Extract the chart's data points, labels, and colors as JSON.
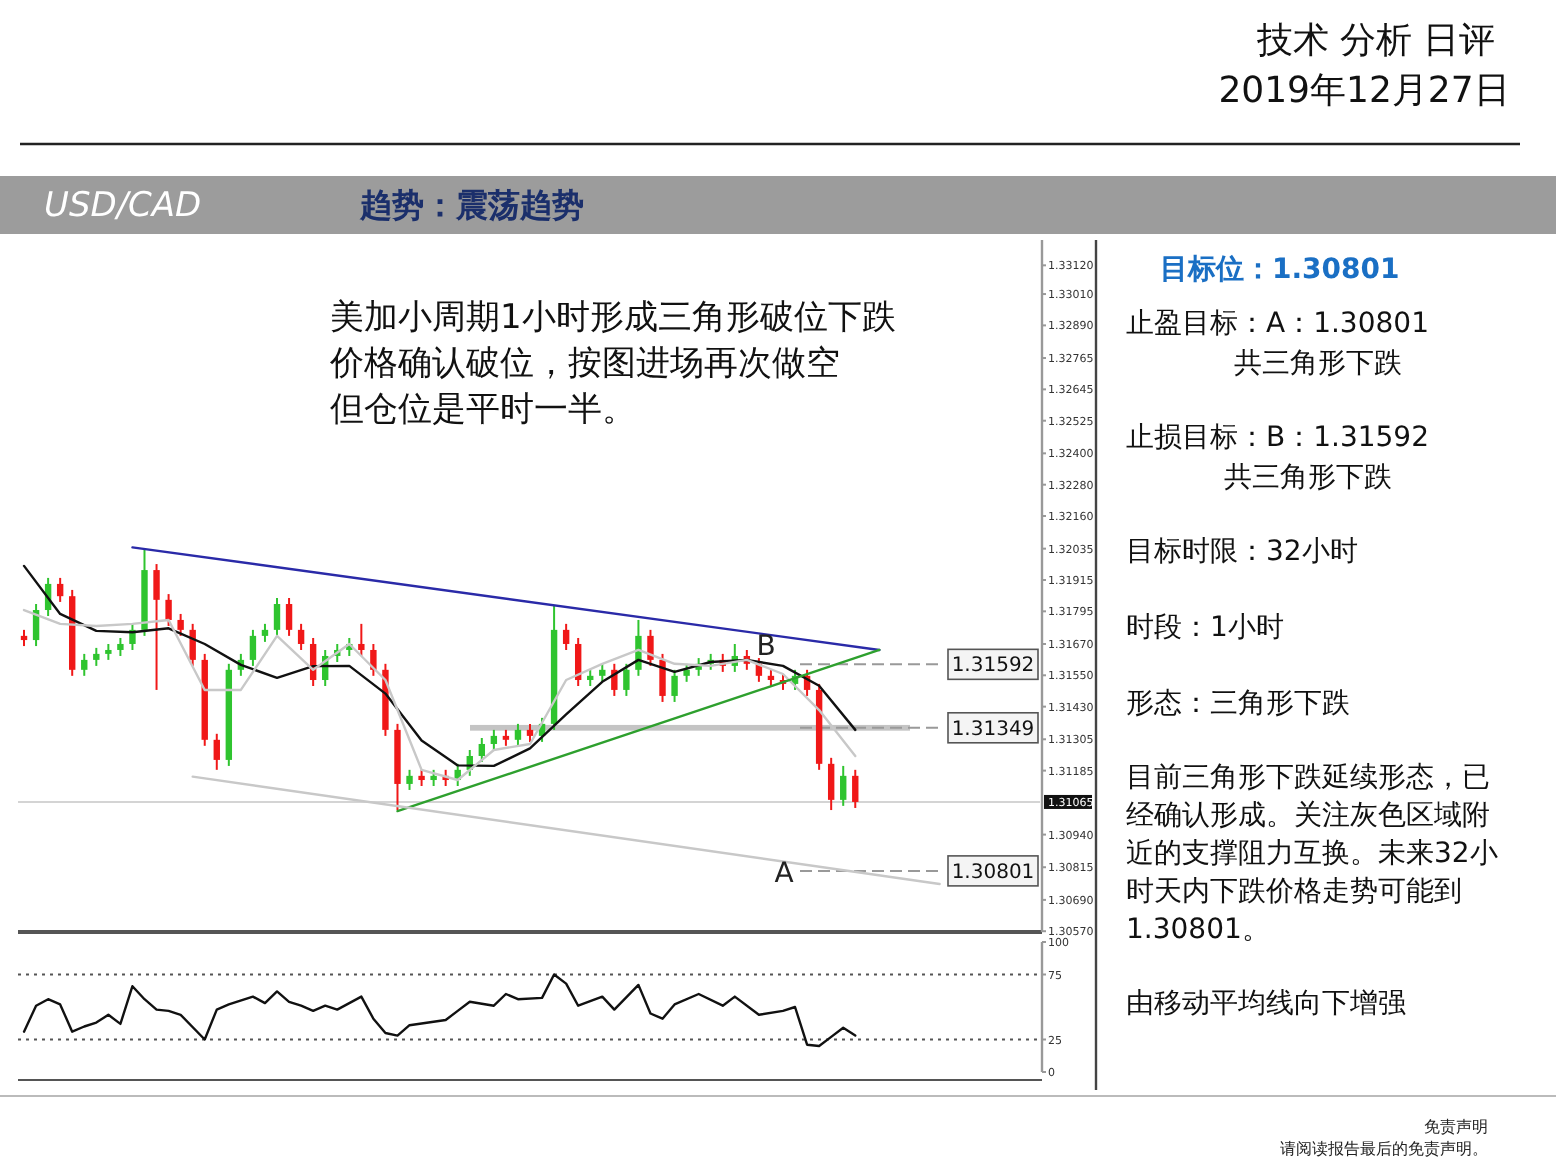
{
  "chart_data": [
    {
      "type": "other",
      "title": "技术 分析 日评",
      "subtitle": "2019年12月27日",
      "annotations": [
        "免责声明",
        "请阅读报告最后的免责声明。"
      ]
    },
    {
      "type": "candlestick",
      "title": "USD/CAD",
      "subtitle": "趋势：震荡趋势",
      "categories": [
        null,
        null,
        null,
        null,
        null,
        null,
        null,
        null,
        null,
        null,
        null,
        null,
        null,
        null,
        null,
        null,
        null,
        null,
        null,
        null,
        null,
        null,
        null,
        null,
        null,
        null,
        null,
        null,
        null,
        null,
        null,
        null,
        null,
        null,
        null,
        null,
        null,
        null,
        null,
        null,
        null,
        null,
        null,
        null,
        null,
        null,
        null,
        null,
        null,
        null,
        null,
        null,
        null,
        null,
        null,
        null,
        null,
        null,
        null,
        null,
        null,
        null,
        null,
        null,
        null,
        null,
        null,
        null,
        null,
        null,
        null,
        null,
        null,
        null,
        null,
        null,
        null,
        null,
        null,
        null,
        null,
        null,
        null,
        null,
        null
      ],
      "ohlc": [
        [
          1.31701,
          1.31724,
          1.31662,
          1.31685
        ],
        [
          1.31685,
          1.31823,
          1.31662,
          1.318
        ],
        [
          1.318,
          1.31923,
          1.31777,
          1.319
        ],
        [
          1.319,
          1.31923,
          1.31831,
          1.31853
        ],
        [
          1.31853,
          1.31877,
          1.31548,
          1.31571
        ],
        [
          1.31571,
          1.31632,
          1.31548,
          1.31609
        ],
        [
          1.31609,
          1.31655,
          1.31586,
          1.31632
        ],
        [
          1.31632,
          1.3167,
          1.31609,
          1.31647
        ],
        [
          1.31647,
          1.31693,
          1.31624,
          1.3167
        ],
        [
          1.3167,
          1.31747,
          1.31647,
          1.31724
        ],
        [
          1.31724,
          1.3203,
          1.31701,
          1.31953
        ],
        [
          1.31953,
          1.31976,
          1.31494,
          1.31839
        ],
        [
          1.31839,
          1.31861,
          1.31739,
          1.31762
        ],
        [
          1.31762,
          1.31785,
          1.31701,
          1.31724
        ],
        [
          1.31724,
          1.31747,
          1.31586,
          1.31609
        ],
        [
          1.31609,
          1.31632,
          1.3128,
          1.31303
        ],
        [
          1.31303,
          1.31326,
          1.31188,
          1.31226
        ],
        [
          1.31226,
          1.31594,
          1.31203,
          1.31571
        ],
        [
          1.31571,
          1.31632,
          1.31548,
          1.31609
        ],
        [
          1.31609,
          1.31724,
          1.31586,
          1.31701
        ],
        [
          1.31701,
          1.31747,
          1.31678,
          1.31724
        ],
        [
          1.31724,
          1.31846,
          1.31701,
          1.31823
        ],
        [
          1.31823,
          1.31846,
          1.31701,
          1.31724
        ],
        [
          1.31724,
          1.31747,
          1.31647,
          1.3167
        ],
        [
          1.3167,
          1.31693,
          1.31509,
          1.31532
        ],
        [
          1.31532,
          1.31647,
          1.31509,
          1.31624
        ],
        [
          1.31624,
          1.3167,
          1.31601,
          1.31647
        ],
        [
          1.31647,
          1.31693,
          1.31624,
          1.3167
        ],
        [
          1.3167,
          1.31747,
          1.31624,
          1.31647
        ],
        [
          1.31647,
          1.3167,
          1.31548,
          1.31571
        ],
        [
          1.31571,
          1.31594,
          1.31318,
          1.31341
        ],
        [
          1.31341,
          1.31364,
          1.31034,
          1.31134
        ],
        [
          1.31134,
          1.31188,
          1.31111,
          1.31165
        ],
        [
          1.31165,
          1.31188,
          1.31126,
          1.31149
        ],
        [
          1.31149,
          1.31188,
          1.31126,
          1.31165
        ],
        [
          1.31165,
          1.31188,
          1.31126,
          1.31149
        ],
        [
          1.31149,
          1.31211,
          1.31126,
          1.31188
        ],
        [
          1.31188,
          1.31264,
          1.31165,
          1.31241
        ],
        [
          1.31241,
          1.3131,
          1.31218,
          1.31287
        ],
        [
          1.31287,
          1.31341,
          1.31264,
          1.31318
        ],
        [
          1.31318,
          1.31341,
          1.3128,
          1.31303
        ],
        [
          1.31303,
          1.31364,
          1.3128,
          1.31341
        ],
        [
          1.31341,
          1.31364,
          1.31295,
          1.31318
        ],
        [
          1.31318,
          1.31387,
          1.31295,
          1.31364
        ],
        [
          1.31364,
          1.31816,
          1.31341,
          1.31724
        ],
        [
          1.31724,
          1.31747,
          1.31647,
          1.3167
        ],
        [
          1.3167,
          1.31693,
          1.31509,
          1.31532
        ],
        [
          1.31532,
          1.31571,
          1.31509,
          1.31548
        ],
        [
          1.31548,
          1.31594,
          1.31525,
          1.31571
        ],
        [
          1.31571,
          1.31594,
          1.31471,
          1.31494
        ],
        [
          1.31494,
          1.31594,
          1.31471,
          1.31571
        ],
        [
          1.31571,
          1.31762,
          1.31548,
          1.31701
        ],
        [
          1.31701,
          1.31724,
          1.31586,
          1.31609
        ],
        [
          1.31609,
          1.31632,
          1.31448,
          1.31471
        ],
        [
          1.31471,
          1.31571,
          1.31448,
          1.31548
        ],
        [
          1.31548,
          1.31594,
          1.31525,
          1.31571
        ],
        [
          1.31571,
          1.31616,
          1.31548,
          1.31594
        ],
        [
          1.31594,
          1.31632,
          1.31571,
          1.31609
        ],
        [
          1.31609,
          1.31632,
          1.31563,
          1.31586
        ],
        [
          1.31586,
          1.3167,
          1.31563,
          1.31624
        ],
        [
          1.31624,
          1.31647,
          1.31571,
          1.31594
        ],
        [
          1.31594,
          1.31616,
          1.31525,
          1.31548
        ],
        [
          1.31548,
          1.31571,
          1.31509,
          1.31532
        ],
        [
          1.31532,
          1.31555,
          1.31494,
          1.31517
        ],
        [
          1.31517,
          1.31571,
          1.31494,
          1.31548
        ],
        [
          1.31548,
          1.31571,
          1.31471,
          1.31494
        ],
        [
          1.31494,
          1.31517,
          1.31188,
          1.31211
        ],
        [
          1.31211,
          1.31234,
          1.31034,
          1.31073
        ],
        [
          1.31073,
          1.31203,
          1.3105,
          1.31165
        ],
        [
          1.31165,
          1.31188,
          1.31042,
          1.31065
        ],
        null,
        null,
        null,
        null,
        null,
        null,
        null,
        null,
        null,
        null,
        null,
        null,
        null,
        null,
        null
      ],
      "series": [
        {
          "type": "line",
          "color": "#111111",
          "values": [
            1.31969,
            null,
            null,
            1.31785,
            null,
            null,
            1.3172,
            null,
            null,
            1.31715,
            null,
            null,
            1.3173,
            null,
            null,
            1.3167,
            null,
            null,
            1.3159,
            null,
            null,
            1.3154,
            null,
            null,
            1.31585,
            null,
            null,
            1.31586,
            null,
            null,
            1.3148,
            null,
            null,
            1.313,
            null,
            null,
            1.31205,
            null,
            null,
            1.31203,
            null,
            null,
            1.3127,
            null,
            null,
            1.314,
            null,
            null,
            1.31525,
            null,
            null,
            1.31609,
            null,
            null,
            1.31563,
            null,
            null,
            1.31601,
            null,
            null,
            1.31609,
            null,
            null,
            1.31586,
            null,
            null,
            1.3151,
            null,
            null,
            1.31341,
            null,
            null,
            null,
            null,
            null,
            null,
            null,
            null,
            null,
            null,
            null,
            null,
            null,
            null,
            null
          ]
        },
        {
          "type": "line",
          "color": "#c8c8c8",
          "values": [
            1.318,
            null,
            null,
            1.31747,
            null,
            null,
            1.31739,
            null,
            null,
            1.31747,
            null,
            null,
            1.31762,
            null,
            null,
            1.31494,
            null,
            null,
            1.31494,
            null,
            null,
            1.31701,
            null,
            null,
            1.31571,
            null,
            null,
            1.3167,
            null,
            null,
            1.31532,
            null,
            null,
            1.31188,
            null,
            null,
            1.31149,
            null,
            null,
            1.31264,
            null,
            null,
            1.31287,
            null,
            null,
            1.31532,
            null,
            null,
            1.31594,
            null,
            null,
            1.31647,
            null,
            null,
            1.31594,
            null,
            null,
            1.31586,
            null,
            null,
            1.31609,
            null,
            null,
            1.31555,
            null,
            null,
            1.31417,
            null,
            null,
            1.31241,
            null,
            null,
            null,
            null,
            null,
            null,
            null,
            null,
            null,
            null,
            null,
            null,
            null,
            null,
            null
          ]
        },
        {
          "type": "line",
          "color": "#2a2aa8",
          "values": [
            null,
            null,
            null,
            null,
            null,
            null,
            null,
            null,
            null,
            1.3204,
            null,
            null,
            null,
            null,
            null,
            null,
            null,
            null,
            null,
            null,
            null,
            null,
            null,
            null,
            null,
            null,
            null,
            null,
            null,
            null,
            null,
            null,
            null,
            null,
            null,
            null,
            null,
            null,
            null,
            null,
            null,
            null,
            null,
            null,
            null,
            null,
            null,
            null,
            null,
            null,
            null,
            null,
            null,
            null,
            null,
            null,
            null,
            null,
            null,
            null,
            null,
            null,
            null,
            null,
            null,
            null,
            null,
            null,
            null,
            null,
            null,
            1.31647,
            null,
            null,
            null,
            null,
            null,
            null,
            null,
            null,
            null,
            null,
            null,
            null,
            null
          ]
        },
        {
          "type": "line",
          "color": "#2ea02e",
          "values": [
            null,
            null,
            null,
            null,
            null,
            null,
            null,
            null,
            null,
            null,
            null,
            null,
            null,
            null,
            null,
            null,
            null,
            null,
            null,
            null,
            null,
            null,
            null,
            null,
            null,
            null,
            null,
            null,
            null,
            null,
            null,
            1.3103,
            null,
            null,
            null,
            null,
            null,
            null,
            null,
            null,
            null,
            null,
            null,
            null,
            null,
            null,
            null,
            null,
            null,
            null,
            null,
            null,
            null,
            null,
            null,
            null,
            null,
            null,
            null,
            null,
            null,
            null,
            null,
            null,
            null,
            null,
            null,
            null,
            null,
            null,
            null,
            1.31647,
            null,
            null,
            null,
            null,
            null,
            null,
            null,
            null,
            null,
            null,
            null,
            null,
            null
          ]
        },
        {
          "type": "line",
          "color": "#c8c8c8",
          "values": [
            null,
            null,
            null,
            null,
            null,
            null,
            null,
            null,
            null,
            null,
            null,
            null,
            null,
            null,
            1.31162,
            null,
            null,
            null,
            null,
            null,
            null,
            null,
            null,
            null,
            null,
            null,
            null,
            null,
            null,
            null,
            null,
            null,
            null,
            null,
            null,
            null,
            null,
            null,
            null,
            null,
            null,
            null,
            null,
            null,
            null,
            null,
            null,
            null,
            null,
            null,
            null,
            null,
            null,
            null,
            null,
            null,
            null,
            null,
            null,
            null,
            null,
            null,
            null,
            null,
            null,
            null,
            null,
            null,
            null,
            null,
            null,
            null,
            null,
            null,
            null,
            null,
            1.30751,
            null,
            null,
            null,
            null,
            null,
            null,
            null,
            null
          ]
        }
      ],
      "ylim": [
        1.30567,
        1.33217
      ],
      "yticks": [
        {
          "value": 1.3312,
          "label": "1.33120"
        },
        {
          "value": 1.3301,
          "label": "1.33010"
        },
        {
          "value": 1.3289,
          "label": "1.32890"
        },
        {
          "value": 1.32765,
          "label": "1.32765"
        },
        {
          "value": 1.32645,
          "label": "1.32645"
        },
        {
          "value": 1.32525,
          "label": "1.32525"
        },
        {
          "value": 1.324,
          "label": "1.32400"
        },
        {
          "value": 1.3228,
          "label": "1.32280"
        },
        {
          "value": 1.3216,
          "label": "1.32160"
        },
        {
          "value": 1.32035,
          "label": "1.32035"
        },
        {
          "value": 1.31915,
          "label": "1.31915"
        },
        {
          "value": 1.31795,
          "label": "1.31795"
        },
        {
          "value": 1.3167,
          "label": "1.31670"
        },
        {
          "value": 1.3155,
          "label": "1.31550"
        },
        {
          "value": 1.3143,
          "label": "1.31430"
        },
        {
          "value": 1.31305,
          "label": "1.31305"
        },
        {
          "value": 1.31185,
          "label": "1.31185"
        },
        {
          "value": 1.3094,
          "label": "1.30940"
        },
        {
          "value": 1.30815,
          "label": "1.30815"
        },
        {
          "value": 1.3069,
          "label": "1.30690"
        },
        {
          "value": 1.3057,
          "label": "1.30570"
        }
      ],
      "tick_labels": "y",
      "ref_lines": [
        {
          "axis": "y",
          "value": 1.31592,
          "label": "1.31592",
          "line_style": "dashed",
          "color": "#999999"
        },
        {
          "axis": "y",
          "value": 1.31349,
          "label": "1.31349",
          "line_style": "dashed",
          "color": "#999999"
        },
        {
          "axis": "y",
          "value": 1.30801,
          "label": "1.30801",
          "line_style": "dashed",
          "color": "#999999"
        },
        {
          "axis": "y",
          "value": 1.31065,
          "label": "1.31065",
          "line_style": "solid",
          "color": "#d4d4d4"
        }
      ],
      "bands": [
        {
          "axis": "y",
          "from": 1.31338,
          "to": 1.3136,
          "color": "#c4c4c4"
        }
      ],
      "annotations": [
        {
          "text": "B",
          "y": 1.31665
        },
        "美加小周期1小时形成三角形破位下跌",
        "价格确认破位，按图进场再次做空",
        "但仓位是平时一半。",
        "A"
      ]
    },
    {
      "type": "line",
      "categories": [
        null,
        null,
        null,
        null,
        null,
        null,
        null,
        null,
        null,
        null,
        null,
        null,
        null,
        null,
        null,
        null,
        null,
        null,
        null,
        null,
        null,
        null,
        null,
        null,
        null,
        null,
        null,
        null,
        null,
        null,
        null,
        null,
        null,
        null,
        null,
        null,
        null,
        null,
        null,
        null,
        null,
        null,
        null,
        null,
        null,
        null,
        null,
        null,
        null,
        null,
        null,
        null,
        null,
        null,
        null,
        null,
        null,
        null,
        null,
        null,
        null,
        null,
        null,
        null,
        null,
        null,
        null,
        null,
        null,
        null,
        null,
        null,
        null,
        null,
        null,
        null,
        null,
        null,
        null,
        null,
        null,
        null,
        null,
        null,
        null
      ],
      "series": [
        {
          "color": "#111111",
          "values": [
            31,
            51,
            56,
            52,
            31,
            35,
            38,
            44,
            37,
            66,
            56,
            48,
            47,
            44,
            null,
            25,
            48,
            52,
            null,
            58,
            53,
            62,
            54,
            51,
            47,
            51,
            48,
            null,
            58,
            41,
            30,
            28,
            36,
            null,
            null,
            40,
            47,
            54,
            null,
            51,
            60,
            56,
            null,
            57,
            75,
            68,
            51,
            null,
            58,
            48,
            null,
            67,
            45,
            41,
            52,
            null,
            60,
            null,
            51,
            58,
            null,
            44,
            null,
            47,
            50,
            21,
            20,
            27,
            34,
            28,
            null,
            null,
            null,
            null,
            null,
            null,
            null,
            null,
            null,
            null,
            null,
            null,
            null,
            null,
            null
          ]
        }
      ],
      "ylim": [
        0,
        100
      ],
      "yticks": [
        0,
        25,
        75,
        100
      ],
      "tick_labels": "y",
      "ref_lines": [
        {
          "axis": "y",
          "value": 25,
          "line_style": "dotted",
          "color": "#555555"
        },
        {
          "axis": "y",
          "value": 75,
          "line_style": "dotted",
          "color": "#555555"
        }
      ]
    },
    {
      "type": "other",
      "title": "目标位：1.30801",
      "annotations": [
        "止盈目标：A：1.30801",
        "共三角形下跌",
        "止损目标：B：1.31592",
        "共三角形下跌",
        "目标时限：32小时",
        "时段：1小时",
        "形态：三角形下跌",
        "目前三角形下跌延续形态，已",
        "经确认形成。关注灰色区域附",
        "近的支撑阻力互换。未来32小",
        "时天内下跌价格走势可能到",
        "1.30801。",
        "由移动平均线向下增强"
      ]
    }
  ]
}
